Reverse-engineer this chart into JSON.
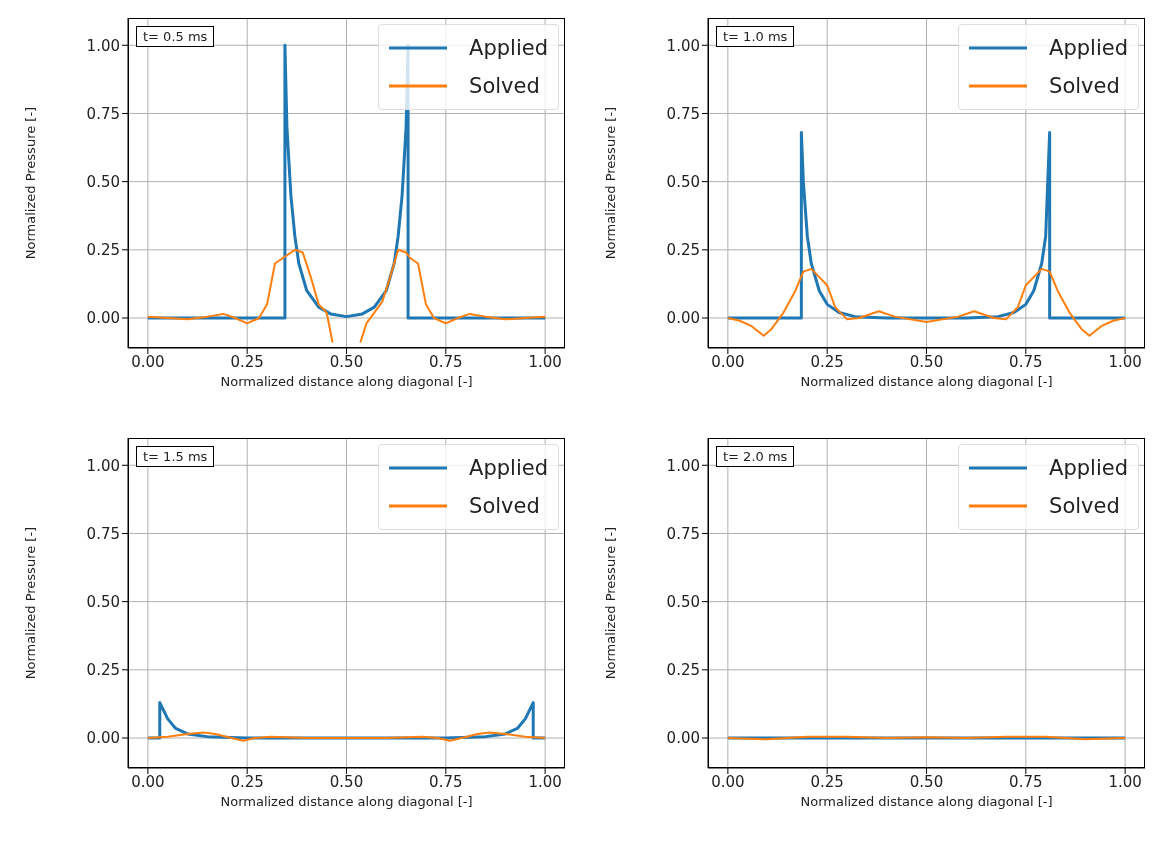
{
  "chart_data": [
    {
      "type": "line",
      "xlabel": "Normalized distance along diagonal [-]",
      "ylabel": "Normalized Pressure [-]",
      "annotations": [
        "t= 0.5 ms"
      ],
      "xlim": [
        -0.05,
        1.05
      ],
      "ylim": [
        -0.11,
        1.1
      ],
      "xticks": [
        {
          "value": 0,
          "label": "0.00"
        },
        {
          "value": 0.25,
          "label": "0.25"
        },
        {
          "value": 0.5,
          "label": "0.50"
        },
        {
          "value": 0.75,
          "label": "0.75"
        },
        {
          "value": 1,
          "label": "1.00"
        }
      ],
      "yticks": [
        {
          "value": 0,
          "label": "0.00"
        },
        {
          "value": 0.25,
          "label": "0.25"
        },
        {
          "value": 0.5,
          "label": "0.50"
        },
        {
          "value": 0.75,
          "label": "0.75"
        },
        {
          "value": 1,
          "label": "1.00"
        }
      ],
      "grid": true,
      "legend": "top right",
      "series": [
        {
          "name": "Applied",
          "color": "#1f77b4",
          "x": [
            0,
            0.345,
            0.345,
            0.35,
            0.36,
            0.37,
            0.38,
            0.4,
            0.43,
            0.46,
            0.5,
            0.54,
            0.57,
            0.6,
            0.62,
            0.63,
            0.64,
            0.65,
            0.655,
            0.655,
            1
          ],
          "values": [
            0,
            0,
            1.0,
            0.7,
            0.45,
            0.3,
            0.2,
            0.1,
            0.04,
            0.015,
            0.005,
            0.015,
            0.04,
            0.1,
            0.2,
            0.3,
            0.45,
            0.7,
            1.0,
            0,
            0
          ]
        },
        {
          "name": "Solved",
          "color": "#ff7f0e",
          "x": [
            0,
            0.05,
            0.1,
            0.15,
            0.19,
            0.22,
            0.25,
            0.28,
            0.3,
            0.32,
            0.34,
            0.37,
            0.39,
            0.41,
            0.43,
            0.45,
            0.465,
            0.5,
            0.535,
            0.55,
            0.57,
            0.59,
            0.61,
            0.63,
            0.65,
            0.66,
            0.68,
            0.7,
            0.72,
            0.75,
            0.78,
            0.81,
            0.85,
            0.9,
            0.95,
            1.0
          ],
          "values": [
            0.005,
            0,
            -0.005,
            0.005,
            0.015,
            0,
            -0.02,
            0,
            0.05,
            0.2,
            0.22,
            0.25,
            0.24,
            0.15,
            0.05,
            0.02,
            -0.09,
            null,
            -0.09,
            -0.02,
            0.02,
            0.06,
            0.15,
            0.25,
            0.24,
            0.22,
            0.2,
            0.05,
            0,
            -0.02,
            0,
            0.015,
            0.005,
            -0.005,
            0,
            0.005
          ]
        }
      ]
    },
    {
      "type": "line",
      "xlabel": "Normalized distance along diagonal [-]",
      "ylabel": "Normalized Pressure [-]",
      "annotations": [
        "t= 1.0 ms"
      ],
      "xlim": [
        -0.05,
        1.05
      ],
      "ylim": [
        -0.11,
        1.1
      ],
      "xticks": [
        {
          "value": 0,
          "label": "0.00"
        },
        {
          "value": 0.25,
          "label": "0.25"
        },
        {
          "value": 0.5,
          "label": "0.50"
        },
        {
          "value": 0.75,
          "label": "0.75"
        },
        {
          "value": 1,
          "label": "1.00"
        }
      ],
      "yticks": [
        {
          "value": 0,
          "label": "0.00"
        },
        {
          "value": 0.25,
          "label": "0.25"
        },
        {
          "value": 0.5,
          "label": "0.50"
        },
        {
          "value": 0.75,
          "label": "0.75"
        },
        {
          "value": 1,
          "label": "1.00"
        }
      ],
      "grid": true,
      "legend": "top right",
      "series": [
        {
          "name": "Applied",
          "color": "#1f77b4",
          "x": [
            0,
            0.185,
            0.185,
            0.19,
            0.2,
            0.21,
            0.23,
            0.25,
            0.28,
            0.32,
            0.4,
            0.6,
            0.68,
            0.72,
            0.75,
            0.77,
            0.79,
            0.8,
            0.81,
            0.81,
            1
          ],
          "values": [
            0,
            0,
            0.68,
            0.5,
            0.3,
            0.2,
            0.1,
            0.05,
            0.02,
            0.005,
            0,
            0,
            0.005,
            0.02,
            0.05,
            0.1,
            0.2,
            0.3,
            0.68,
            0,
            0
          ]
        },
        {
          "name": "Solved",
          "color": "#ff7f0e",
          "x": [
            0,
            0.03,
            0.06,
            0.09,
            0.11,
            0.14,
            0.17,
            0.19,
            0.21,
            0.23,
            0.25,
            0.27,
            0.3,
            0.33,
            0.38,
            0.42,
            0.5,
            0.58,
            0.62,
            0.67,
            0.7,
            0.73,
            0.75,
            0.77,
            0.79,
            0.81,
            0.83,
            0.86,
            0.89,
            0.91,
            0.94,
            0.97,
            1.0
          ],
          "values": [
            0,
            -0.01,
            -0.03,
            -0.065,
            -0.04,
            0.02,
            0.1,
            0.17,
            0.18,
            0.15,
            0.12,
            0.04,
            -0.005,
            0,
            0.025,
            0.005,
            -0.015,
            0.005,
            0.025,
            0,
            -0.005,
            0.04,
            0.12,
            0.15,
            0.18,
            0.17,
            0.1,
            0.02,
            -0.04,
            -0.065,
            -0.03,
            -0.01,
            0
          ]
        }
      ]
    },
    {
      "type": "line",
      "xlabel": "Normalized distance along diagonal [-]",
      "ylabel": "Normalized Pressure [-]",
      "annotations": [
        "t= 1.5 ms"
      ],
      "xlim": [
        -0.05,
        1.05
      ],
      "ylim": [
        -0.11,
        1.1
      ],
      "xticks": [
        {
          "value": 0,
          "label": "0.00"
        },
        {
          "value": 0.25,
          "label": "0.25"
        },
        {
          "value": 0.5,
          "label": "0.50"
        },
        {
          "value": 0.75,
          "label": "0.75"
        },
        {
          "value": 1,
          "label": "1.00"
        }
      ],
      "yticks": [
        {
          "value": 0,
          "label": "0.00"
        },
        {
          "value": 0.25,
          "label": "0.25"
        },
        {
          "value": 0.5,
          "label": "0.50"
        },
        {
          "value": 0.75,
          "label": "0.75"
        },
        {
          "value": 1,
          "label": "1.00"
        }
      ],
      "grid": true,
      "legend": "top right",
      "series": [
        {
          "name": "Applied",
          "color": "#1f77b4",
          "x": [
            0,
            0.03,
            0.03,
            0.05,
            0.07,
            0.1,
            0.15,
            0.25,
            0.75,
            0.85,
            0.9,
            0.93,
            0.95,
            0.97,
            0.97,
            1
          ],
          "values": [
            0,
            0,
            0.13,
            0.07,
            0.035,
            0.015,
            0.005,
            0,
            0,
            0.005,
            0.015,
            0.035,
            0.07,
            0.13,
            0,
            0
          ]
        },
        {
          "name": "Solved",
          "color": "#ff7f0e",
          "x": [
            0,
            0.05,
            0.1,
            0.14,
            0.17,
            0.21,
            0.24,
            0.27,
            0.31,
            0.4,
            0.5,
            0.6,
            0.69,
            0.73,
            0.76,
            0.79,
            0.83,
            0.86,
            0.9,
            0.95,
            1.0
          ],
          "values": [
            0,
            0.005,
            0.015,
            0.02,
            0.015,
            0,
            -0.01,
            0,
            0.005,
            0,
            0,
            0,
            0.005,
            0,
            -0.01,
            0,
            0.015,
            0.02,
            0.015,
            0.005,
            0
          ]
        }
      ]
    },
    {
      "type": "line",
      "xlabel": "Normalized distance along diagonal [-]",
      "ylabel": "Normalized Pressure [-]",
      "annotations": [
        "t= 2.0 ms"
      ],
      "xlim": [
        -0.05,
        1.05
      ],
      "ylim": [
        -0.11,
        1.1
      ],
      "xticks": [
        {
          "value": 0,
          "label": "0.00"
        },
        {
          "value": 0.25,
          "label": "0.25"
        },
        {
          "value": 0.5,
          "label": "0.50"
        },
        {
          "value": 0.75,
          "label": "0.75"
        },
        {
          "value": 1,
          "label": "1.00"
        }
      ],
      "yticks": [
        {
          "value": 0,
          "label": "0.00"
        },
        {
          "value": 0.25,
          "label": "0.25"
        },
        {
          "value": 0.5,
          "label": "0.50"
        },
        {
          "value": 0.75,
          "label": "0.75"
        },
        {
          "value": 1,
          "label": "1.00"
        }
      ],
      "grid": true,
      "legend": "top right",
      "series": [
        {
          "name": "Applied",
          "color": "#1f77b4",
          "x": [
            0,
            0.5,
            1
          ],
          "values": [
            0,
            0,
            0
          ]
        },
        {
          "name": "Solved",
          "color": "#ff7f0e",
          "x": [
            0,
            0.1,
            0.2,
            0.3,
            0.4,
            0.5,
            0.6,
            0.7,
            0.8,
            0.9,
            1.0
          ],
          "values": [
            0,
            -0.005,
            0.005,
            0.005,
            0,
            0.003,
            0,
            0.005,
            0.005,
            -0.005,
            0
          ]
        }
      ]
    }
  ]
}
